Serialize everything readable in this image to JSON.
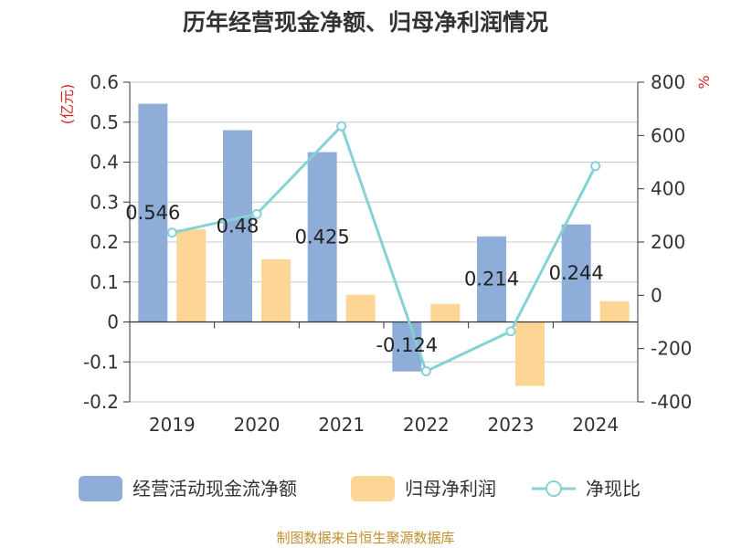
{
  "chart_data": {
    "type": "bar",
    "title": "历年经营现金净额、归母净利润情况",
    "categories": [
      "2019",
      "2020",
      "2021",
      "2022",
      "2023",
      "2024"
    ],
    "left_axis": {
      "unit": "(亿元)",
      "ylim": [
        -0.2,
        0.6
      ],
      "ticks": [
        "0.6",
        "0.5",
        "0.4",
        "0.3",
        "0.2",
        "0.1",
        "0",
        "-0.1",
        "-0.2"
      ],
      "tick_values": [
        0.6,
        0.5,
        0.4,
        0.3,
        0.2,
        0.1,
        0,
        -0.1,
        -0.2
      ]
    },
    "right_axis": {
      "unit": "%",
      "ylim": [
        -400,
        800
      ],
      "ticks": [
        "800",
        "600",
        "400",
        "200",
        "0",
        "-200",
        "-400"
      ],
      "tick_values": [
        800,
        600,
        400,
        200,
        0,
        -200,
        -400
      ]
    },
    "series": [
      {
        "name": "经营活动现金流净额",
        "type": "bar",
        "axis": "left",
        "color": "#8fadd9",
        "values": [
          0.546,
          0.48,
          0.425,
          -0.124,
          0.214,
          0.244
        ],
        "labels": [
          "0.546",
          "0.48",
          "0.425",
          "-0.124",
          "0.214",
          "0.244"
        ]
      },
      {
        "name": "归母净利润",
        "type": "bar",
        "axis": "left",
        "color": "#fdd595",
        "values": [
          0.232,
          0.157,
          0.068,
          0.045,
          -0.16,
          0.052
        ]
      },
      {
        "name": "净现比",
        "type": "line",
        "axis": "right",
        "color": "#84d1d6",
        "values": [
          235,
          305,
          635,
          -285,
          -135,
          485
        ]
      }
    ],
    "grid": true,
    "legend_position": "bottom"
  },
  "footer": {
    "source": "制图数据来自恒生聚源数据库"
  }
}
